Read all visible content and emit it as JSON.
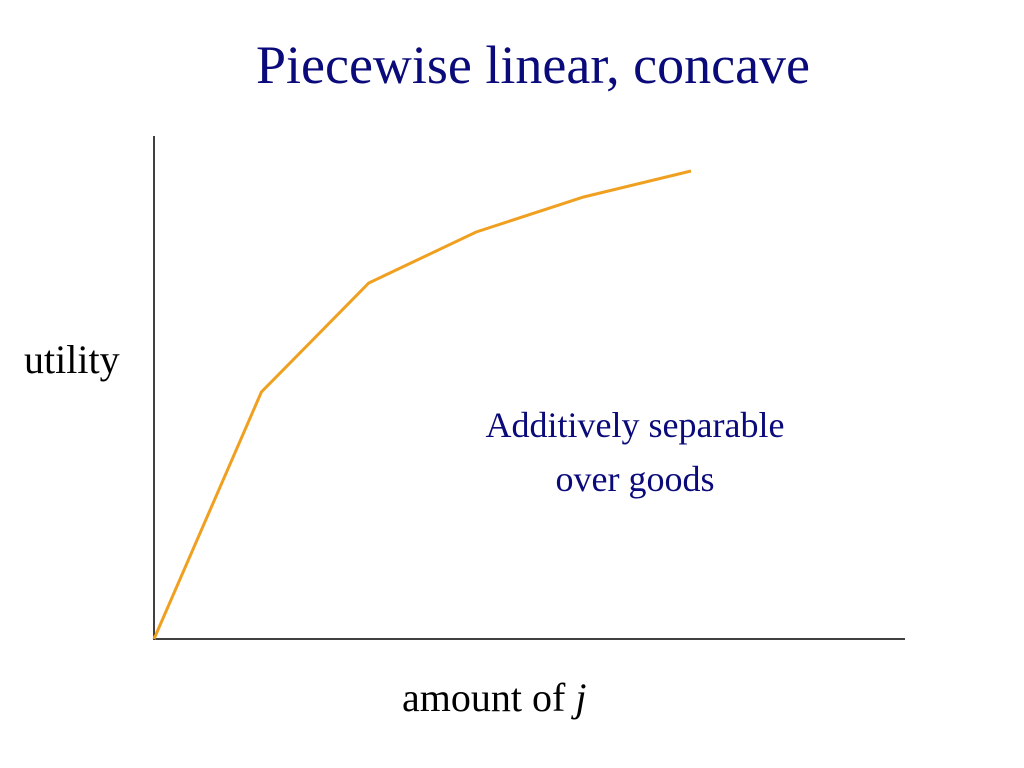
{
  "title": "Piecewise linear, concave",
  "axes": {
    "y_label": "utility",
    "x_label_text": "amount of ",
    "x_label_var": "j"
  },
  "annotation": {
    "line1": "Additively separable",
    "line2": "over goods"
  },
  "colors": {
    "title": "#0a0a7a",
    "annotation": "#0a0a7a",
    "curve": "#f0a020",
    "axes": "#000000"
  },
  "curve": {
    "kind": "piecewise linear concave",
    "points": [
      [
        0,
        0
      ],
      [
        1,
        2.47
      ],
      [
        2,
        3.56
      ],
      [
        3,
        4.07
      ],
      [
        4,
        4.42
      ],
      [
        5,
        4.68
      ]
    ]
  }
}
